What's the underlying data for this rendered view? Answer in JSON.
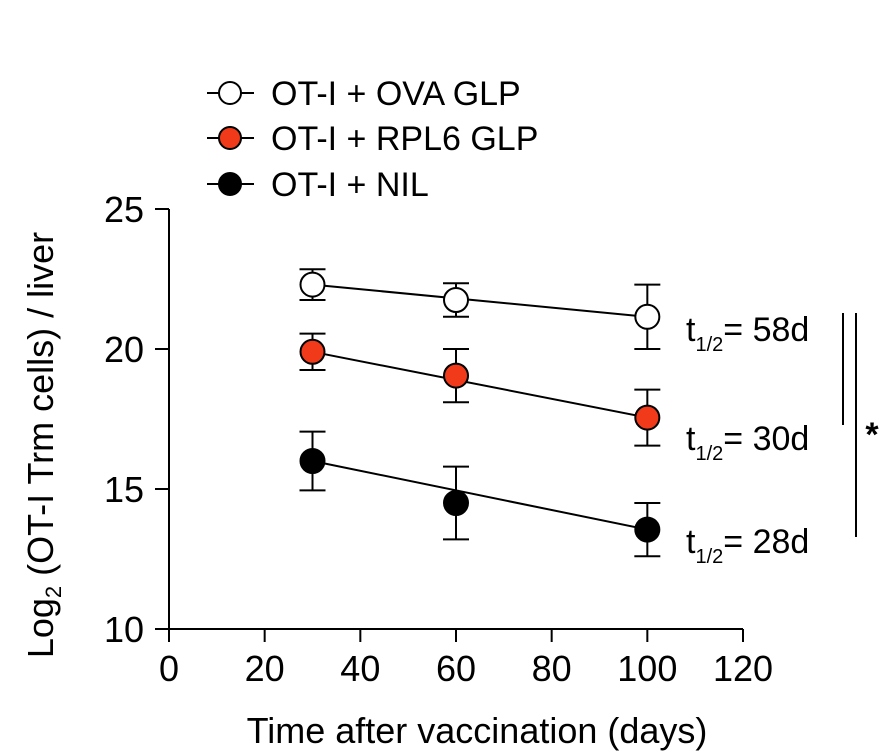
{
  "chart_data": {
    "type": "scatter",
    "xlabel": "Time after vaccination (days)",
    "ylabel": {
      "prefix": "Log",
      "subscript": "2",
      "suffix": " (OT-I Trm cells) / liver"
    },
    "xlim": [
      0,
      120
    ],
    "ylim": [
      10,
      25
    ],
    "x_ticks": [
      0,
      20,
      40,
      60,
      80,
      100,
      120
    ],
    "y_ticks": [
      10,
      15,
      20,
      25
    ],
    "grid": false,
    "legend_position": "top-left",
    "series": [
      {
        "name": "OT-I + OVA GLP",
        "fill": "#ffffff",
        "x": [
          30,
          60,
          100
        ],
        "y": [
          22.3,
          21.75,
          21.15
        ],
        "err": [
          0.55,
          0.6,
          1.15
        ],
        "half_life": {
          "t": "t",
          "sub": "1/2",
          "value": "= 58d"
        }
      },
      {
        "name": "OT-I + RPL6 GLP",
        "fill": "#f03a1a",
        "x": [
          30,
          60,
          100
        ],
        "y": [
          19.9,
          19.05,
          17.55
        ],
        "err": [
          0.65,
          0.95,
          1.0
        ],
        "half_life": {
          "t": "t",
          "sub": "1/2",
          "value": "= 30d"
        }
      },
      {
        "name": "OT-I + NIL",
        "fill": "#000000",
        "x": [
          30,
          60,
          100
        ],
        "y": [
          16.0,
          14.5,
          13.55
        ],
        "err": [
          1.05,
          1.3,
          0.95
        ],
        "half_life": {
          "t": "t",
          "sub": "1/2",
          "value": "= 28d"
        }
      }
    ],
    "significance": "*"
  }
}
